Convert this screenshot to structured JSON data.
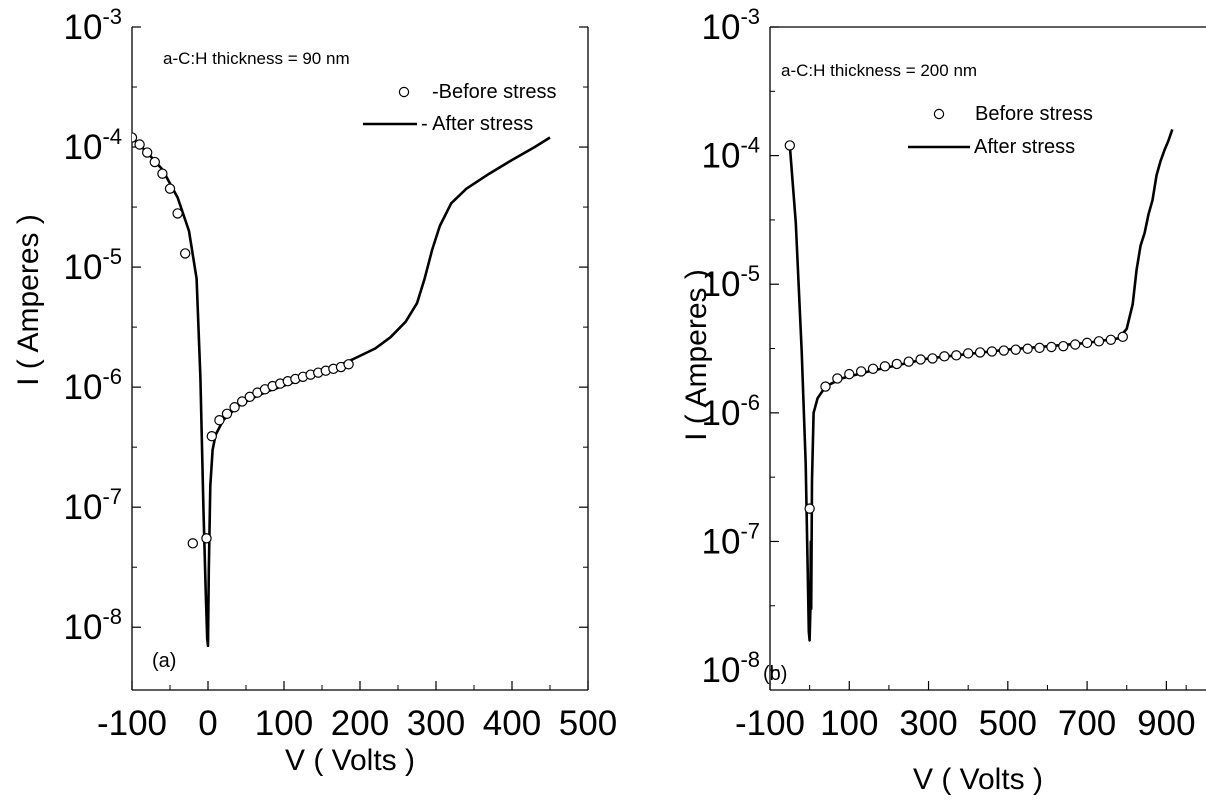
{
  "chart_data": [
    {
      "type": "line",
      "panel_label": "(a)",
      "annotation": "a-C:H thickness = 90 nm",
      "xlabel": "V ( Volts )",
      "ylabel": "I ( Amperes )",
      "xlim": [
        -100,
        500
      ],
      "ylim": [
        3e-09,
        0.001
      ],
      "y_scale": "log",
      "x_ticks": [
        -100,
        0,
        100,
        200,
        300,
        400,
        500
      ],
      "x_tick_labels": [
        "-100",
        "0",
        "100",
        "200",
        "300",
        "400",
        "500"
      ],
      "y_ticks": [
        1e-08,
        1e-07,
        1e-06,
        1e-05,
        0.0001,
        0.001
      ],
      "y_tick_labels": [
        {
          "base": "10",
          "exp": "-8"
        },
        {
          "base": "10",
          "exp": "-7"
        },
        {
          "base": "10",
          "exp": "-6"
        },
        {
          "base": "10",
          "exp": "-5"
        },
        {
          "base": "10",
          "exp": "-4"
        },
        {
          "base": "10",
          "exp": "-3"
        }
      ],
      "grid": false,
      "legend_position": "top-right",
      "series": [
        {
          "name": "-Before stress",
          "style": "open-circles",
          "color": "#000000",
          "x": [
            -100,
            -90,
            -80,
            -70,
            -60,
            -50,
            -40,
            -30,
            -20,
            -2,
            5,
            15,
            25,
            35,
            45,
            55,
            65,
            75,
            85,
            95,
            105,
            115,
            125,
            135,
            145,
            155,
            165,
            175,
            185
          ],
          "y": [
            0.00012,
            0.000105,
            9e-05,
            7.5e-05,
            6e-05,
            4.5e-05,
            2.8e-05,
            1.3e-05,
            5e-08,
            5.5e-08,
            3.9e-07,
            5.3e-07,
            6e-07,
            6.8e-07,
            7.6e-07,
            8.3e-07,
            9e-07,
            9.6e-07,
            1.02e-06,
            1.07e-06,
            1.12e-06,
            1.17e-06,
            1.22e-06,
            1.27e-06,
            1.32e-06,
            1.37e-06,
            1.42e-06,
            1.47e-06,
            1.55e-06
          ]
        },
        {
          "name": "- After stress",
          "style": "solid-line",
          "color": "#000000",
          "x": [
            -100,
            -80,
            -60,
            -40,
            -25,
            -15,
            -10,
            -6,
            -3,
            -1,
            0,
            1,
            3,
            6,
            10,
            20,
            40,
            60,
            80,
            100,
            130,
            160,
            190,
            220,
            240,
            260,
            275,
            285,
            295,
            305,
            320,
            340,
            370,
            400,
            430,
            450
          ],
          "y": [
            0.00012,
            9e-05,
            6.5e-05,
            3.8e-05,
            2e-05,
            8e-06,
            1.2e-06,
            1e-07,
            2e-08,
            8e-09,
            7e-09,
            3e-08,
            1.5e-07,
            3e-07,
            4e-07,
            5.3e-07,
            7e-07,
            8.2e-07,
            9.3e-07,
            1.03e-06,
            1.2e-06,
            1.4e-06,
            1.7e-06,
            2.1e-06,
            2.6e-06,
            3.5e-06,
            5e-06,
            8e-06,
            1.4e-05,
            2.2e-05,
            3.4e-05,
            4.5e-05,
            6e-05,
            7.8e-05,
            0.0001,
            0.00012
          ]
        }
      ]
    },
    {
      "type": "line",
      "panel_label": "(b)",
      "annotation": "a-C:H thickness = 200 nm",
      "xlabel": "V ( Volts )",
      "ylabel": "I ( Amperes )",
      "xlim": [
        -100,
        1000
      ],
      "ylim": [
        7e-09,
        0.001
      ],
      "y_scale": "log",
      "x_ticks": [
        -100,
        100,
        300,
        500,
        700,
        900
      ],
      "x_tick_labels": [
        "-100",
        "100",
        "300",
        "500",
        "700",
        "900"
      ],
      "y_ticks": [
        1e-08,
        1e-07,
        1e-06,
        1e-05,
        0.0001,
        0.001
      ],
      "y_tick_labels": [
        {
          "base": "10",
          "exp": "-8"
        },
        {
          "base": "10",
          "exp": "-7"
        },
        {
          "base": "10",
          "exp": "-6"
        },
        {
          "base": "10",
          "exp": "-5"
        },
        {
          "base": "10",
          "exp": "-4"
        },
        {
          "base": "10",
          "exp": "-3"
        }
      ],
      "grid": false,
      "legend_position": "top-right",
      "series": [
        {
          "name": "Before stress",
          "style": "open-circles",
          "color": "#000000",
          "x": [
            -50,
            0,
            40,
            70,
            100,
            130,
            160,
            190,
            220,
            250,
            280,
            310,
            340,
            370,
            400,
            430,
            460,
            490,
            520,
            550,
            580,
            610,
            640,
            670,
            700,
            730,
            760,
            790
          ],
          "y": [
            0.00012,
            1.8e-07,
            1.6e-06,
            1.85e-06,
            2e-06,
            2.1e-06,
            2.2e-06,
            2.3e-06,
            2.4e-06,
            2.5e-06,
            2.6e-06,
            2.65e-06,
            2.75e-06,
            2.8e-06,
            2.9e-06,
            2.95e-06,
            3e-06,
            3.05e-06,
            3.1e-06,
            3.15e-06,
            3.2e-06,
            3.25e-06,
            3.3e-06,
            3.4e-06,
            3.5e-06,
            3.6e-06,
            3.7e-06,
            3.9e-06
          ]
        },
        {
          "name": "After stress",
          "style": "solid-line",
          "color": "#000000",
          "x": [
            -50,
            -35,
            -20,
            -10,
            -5,
            -2,
            0,
            2,
            3,
            4,
            6,
            10,
            20,
            40,
            80,
            150,
            300,
            500,
            700,
            780,
            800,
            815,
            825,
            835,
            845,
            855,
            865,
            875,
            885,
            895,
            905,
            915
          ],
          "y": [
            0.00012,
            3e-05,
            3e-06,
            4e-07,
            6e-08,
            2e-08,
            1.7e-08,
            3e-08,
            1e-07,
            3e-08,
            3e-07,
            1e-06,
            1.3e-06,
            1.6e-06,
            1.85e-06,
            2.1e-06,
            2.65e-06,
            3.1e-06,
            3.5e-06,
            3.8e-06,
            4.5e-06,
            7e-06,
            1.3e-05,
            2e-05,
            2.5e-05,
            3.5e-05,
            4.5e-05,
            7e-05,
            9e-05,
            0.00011,
            0.00013,
            0.00016
          ]
        }
      ]
    }
  ]
}
